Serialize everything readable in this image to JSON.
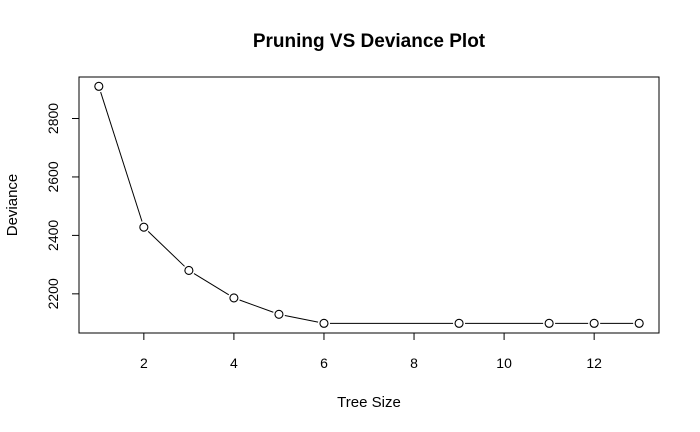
{
  "chart_data": {
    "type": "line",
    "title": "Pruning VS Deviance Plot",
    "xlabel": "Tree Size",
    "ylabel": "Deviance",
    "x": [
      1,
      2,
      3,
      4,
      5,
      6,
      9,
      11,
      12,
      13
    ],
    "y": [
      2910,
      2428,
      2280,
      2186,
      2130,
      2099,
      2099,
      2099,
      2099,
      2099
    ],
    "xlim": [
      0.56,
      13.44
    ],
    "ylim": [
      2066,
      2942
    ],
    "xticks": [
      2,
      4,
      6,
      8,
      10,
      12
    ],
    "yticks": [
      2200,
      2400,
      2600,
      2800
    ],
    "marker": "open-circle",
    "line_color": "#000000",
    "grid": false,
    "legend": "none"
  }
}
